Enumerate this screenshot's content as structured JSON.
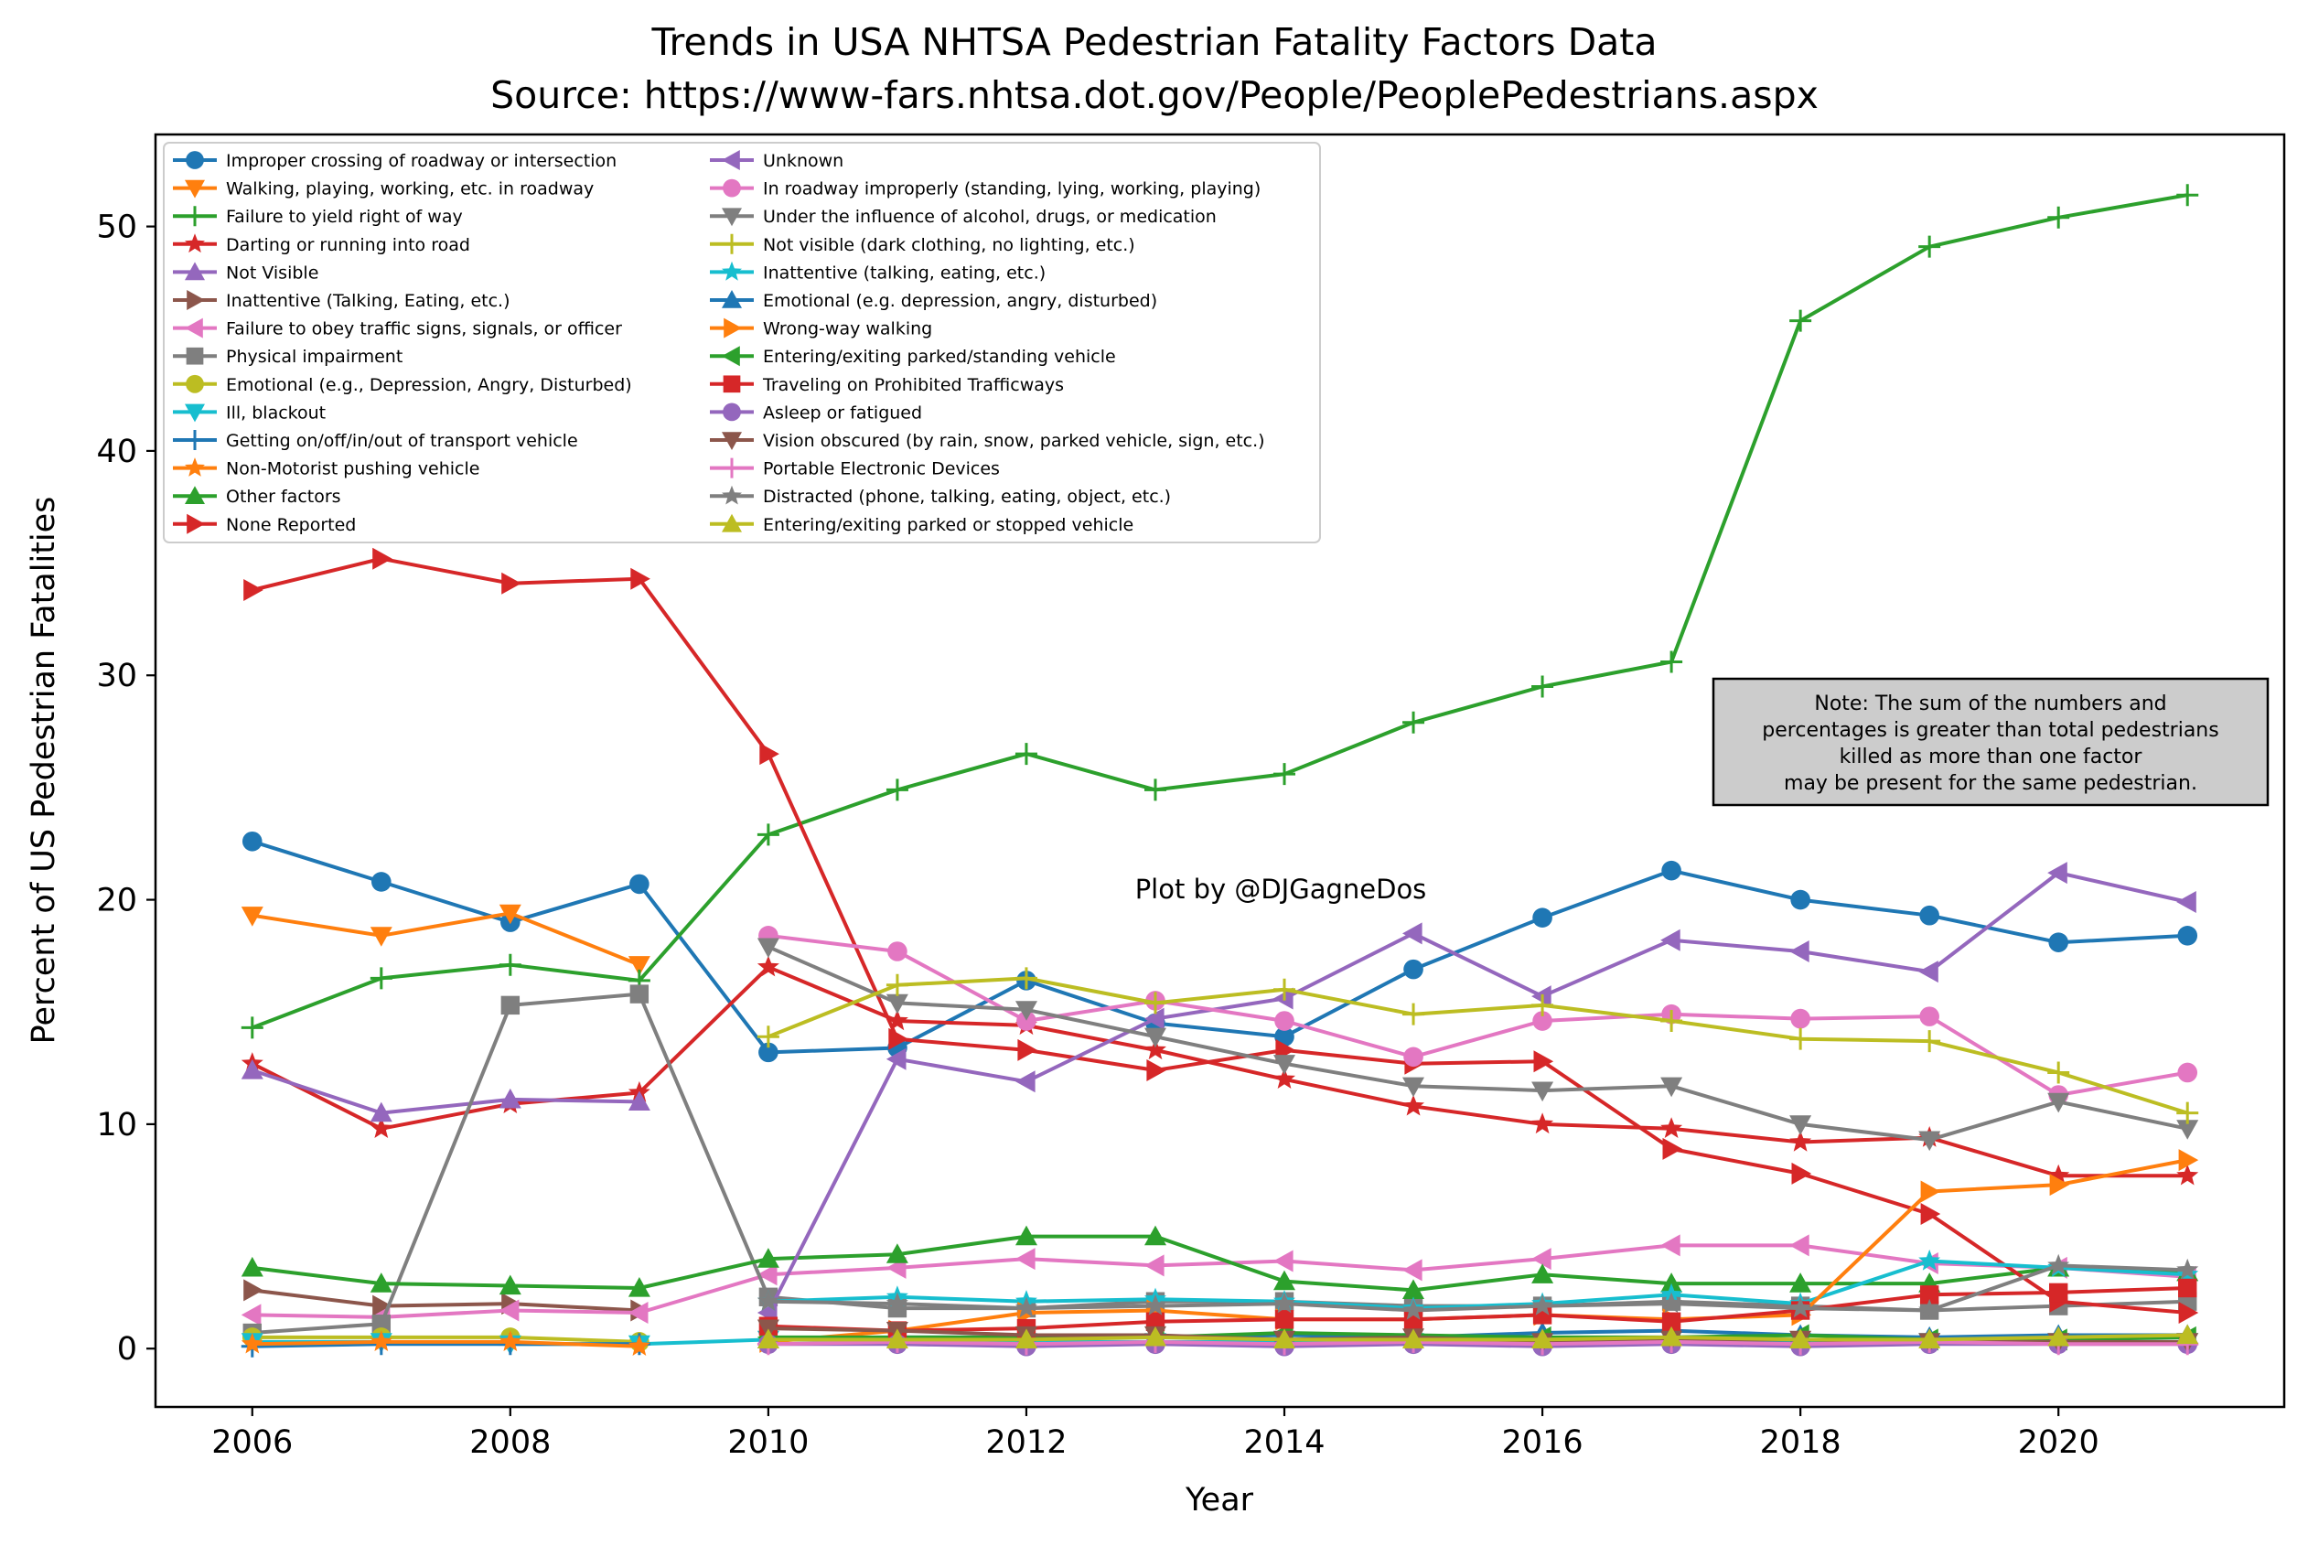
{
  "chart_data": {
    "type": "line",
    "title": "Trends in USA NHTSA Pedestrian Fatality Factors Data",
    "subtitle": "Source: https://www-fars.nhtsa.dot.gov/People/PeoplePedestrians.aspx",
    "xlabel": "Year",
    "ylabel": "Percent of US Pedestrian Fatalities",
    "xlim": [
      2005.25,
      2021.75
    ],
    "ylim": [
      -2.6,
      54.1
    ],
    "xticks": [
      2006,
      2008,
      2010,
      2012,
      2014,
      2016,
      2018,
      2020
    ],
    "yticks": [
      0,
      10,
      20,
      30,
      40,
      50
    ],
    "legend_position": "upper-left",
    "annotation": "Plot by @DJGagneDos",
    "note": [
      "Note: The sum of the numbers and",
      "percentages is greater than total pedestrians",
      "killed as more than one factor",
      "may be present for the same pedestrian."
    ],
    "x": [
      2006,
      2007,
      2008,
      2009,
      2010,
      2011,
      2012,
      2013,
      2014,
      2015,
      2016,
      2017,
      2018,
      2019,
      2020,
      2021
    ],
    "series": [
      {
        "name": "Improper crossing of roadway or intersection",
        "color": "#1f77b4",
        "marker": "circle",
        "x": [
          2006,
          2007,
          2008,
          2009,
          2010,
          2011,
          2012,
          2013,
          2014,
          2015,
          2016,
          2017,
          2018,
          2019,
          2020,
          2021
        ],
        "values": [
          22.6,
          20.8,
          19.0,
          20.7,
          13.2,
          13.4,
          16.4,
          14.5,
          13.9,
          16.9,
          19.2,
          21.3,
          20.0,
          19.3,
          18.1,
          18.4
        ]
      },
      {
        "name": "Walking, playing, working, etc. in roadway",
        "color": "#ff7f0e",
        "marker": "triangle-down",
        "x": [
          2006,
          2007,
          2008,
          2009
        ],
        "values": [
          19.3,
          18.4,
          19.4,
          17.1
        ]
      },
      {
        "name": "Failure to yield right of way",
        "color": "#2ca02c",
        "marker": "plus",
        "x": [
          2006,
          2007,
          2008,
          2009,
          2010,
          2011,
          2012,
          2013,
          2014,
          2015,
          2016,
          2017,
          2018,
          2019,
          2020,
          2021
        ],
        "values": [
          14.3,
          16.5,
          17.1,
          16.4,
          22.9,
          24.9,
          26.5,
          24.9,
          25.6,
          27.9,
          29.5,
          30.6,
          45.8,
          49.1,
          50.4,
          51.4
        ]
      },
      {
        "name": "Darting or running into road",
        "color": "#d62728",
        "marker": "star",
        "x": [
          2006,
          2007,
          2008,
          2009,
          2010,
          2011,
          2012,
          2013,
          2014,
          2015,
          2016,
          2017,
          2018,
          2019,
          2020,
          2021
        ],
        "values": [
          12.7,
          9.8,
          10.9,
          11.4,
          17.0,
          14.6,
          14.4,
          13.3,
          12.0,
          10.8,
          10.0,
          9.8,
          9.2,
          9.4,
          7.7,
          7.7
        ]
      },
      {
        "name": "Not Visible",
        "color": "#9467bd",
        "marker": "triangle-up",
        "x": [
          2006,
          2007,
          2008,
          2009
        ],
        "values": [
          12.4,
          10.5,
          11.1,
          11.0
        ]
      },
      {
        "name": "Inattentive (Talking, Eating, etc.)",
        "color": "#8c564b",
        "marker": "triangle-right",
        "x": [
          2006,
          2007,
          2008,
          2009
        ],
        "values": [
          2.6,
          1.9,
          2.0,
          1.7
        ]
      },
      {
        "name": "Failure to obey traffic signs, signals, or officer",
        "color": "#e377c2",
        "marker": "triangle-left",
        "x": [
          2006,
          2007,
          2008,
          2009,
          2010,
          2011,
          2012,
          2013,
          2014,
          2015,
          2016,
          2017,
          2018,
          2019,
          2020,
          2021
        ],
        "values": [
          1.5,
          1.4,
          1.7,
          1.6,
          3.3,
          3.6,
          4.0,
          3.7,
          3.9,
          3.5,
          4.0,
          4.6,
          4.6,
          3.8,
          3.6,
          3.2
        ]
      },
      {
        "name": "Physical impairment",
        "color": "#7f7f7f",
        "marker": "square",
        "x": [
          2006,
          2007,
          2008,
          2009,
          2010,
          2011,
          2012,
          2013,
          2014,
          2015,
          2016,
          2017,
          2018,
          2019,
          2020,
          2021
        ],
        "values": [
          0.7,
          1.1,
          15.3,
          15.8,
          2.3,
          1.8,
          1.8,
          2.1,
          2.1,
          1.9,
          1.9,
          2.1,
          1.9,
          1.7,
          1.9,
          2.1
        ]
      },
      {
        "name": "Emotional (e.g., Depression, Angry, Disturbed)",
        "color": "#bcbd22",
        "marker": "circle",
        "x": [
          2006,
          2007,
          2008,
          2009
        ],
        "values": [
          0.5,
          0.5,
          0.5,
          0.3
        ]
      },
      {
        "name": "Ill, blackout",
        "color": "#17becf",
        "marker": "triangle-down",
        "x": [
          2006,
          2007,
          2008,
          2009,
          2010,
          2011,
          2012,
          2013,
          2014,
          2015,
          2016,
          2017,
          2018,
          2019,
          2020,
          2021
        ],
        "values": [
          0.3,
          0.3,
          0.2,
          0.2,
          0.4,
          0.4,
          0.3,
          0.3,
          0.3,
          0.3,
          0.3,
          0.4,
          0.3,
          0.3,
          0.3,
          0.3
        ]
      },
      {
        "name": "Getting on/off/in/out of transport vehicle",
        "color": "#1f77b4",
        "marker": "plus",
        "x": [
          2006,
          2007,
          2008,
          2009
        ],
        "values": [
          0.1,
          0.2,
          0.2,
          0.2
        ]
      },
      {
        "name": "Non-Motorist pushing  vehicle",
        "color": "#ff7f0e",
        "marker": "star",
        "x": [
          2006,
          2007,
          2008,
          2009
        ],
        "values": [
          0.2,
          0.3,
          0.3,
          0.1
        ]
      },
      {
        "name": "Other factors",
        "color": "#2ca02c",
        "marker": "triangle-up",
        "x": [
          2006,
          2007,
          2008,
          2009,
          2010,
          2011,
          2012,
          2013,
          2014,
          2015,
          2016,
          2017,
          2018,
          2019,
          2020,
          2021
        ],
        "values": [
          3.6,
          2.9,
          2.8,
          2.7,
          4.0,
          4.2,
          5.0,
          5.0,
          3.0,
          2.6,
          3.3,
          2.9,
          2.9,
          2.9,
          3.6,
          3.4
        ]
      },
      {
        "name": "None Reported",
        "color": "#d62728",
        "marker": "triangle-right",
        "x": [
          2006,
          2007,
          2008,
          2009,
          2010,
          2011,
          2012,
          2013,
          2014,
          2015,
          2016,
          2017,
          2018,
          2019,
          2020,
          2021
        ],
        "values": [
          33.8,
          35.2,
          34.1,
          34.3,
          26.5,
          13.8,
          13.3,
          12.4,
          13.3,
          12.7,
          12.8,
          8.9,
          7.8,
          6.0,
          2.1,
          1.6
        ]
      },
      {
        "name": "Unknown",
        "color": "#9467bd",
        "marker": "triangle-left",
        "x": [
          2010,
          2011,
          2012,
          2013,
          2014,
          2015,
          2016,
          2017,
          2018,
          2019,
          2020,
          2021
        ],
        "values": [
          1.6,
          12.9,
          11.9,
          14.7,
          15.6,
          18.5,
          15.7,
          18.2,
          17.7,
          16.8,
          21.2,
          19.9
        ]
      },
      {
        "name": "In roadway improperly (standing, lying, working, playing)",
        "color": "#e377c2",
        "marker": "circle",
        "x": [
          2010,
          2011,
          2012,
          2013,
          2014,
          2015,
          2016,
          2017,
          2018,
          2019,
          2020,
          2021
        ],
        "values": [
          18.4,
          17.7,
          14.6,
          15.5,
          14.6,
          13.0,
          14.6,
          14.9,
          14.7,
          14.8,
          11.3,
          12.3
        ]
      },
      {
        "name": "Under the influence of alcohol, drugs, or medication",
        "color": "#7f7f7f",
        "marker": "triangle-down",
        "x": [
          2010,
          2011,
          2012,
          2013,
          2014,
          2015,
          2016,
          2017,
          2018,
          2019,
          2020,
          2021
        ],
        "values": [
          17.9,
          15.4,
          15.1,
          13.9,
          12.7,
          11.7,
          11.5,
          11.7,
          10.0,
          9.3,
          11.0,
          9.8
        ]
      },
      {
        "name": "Not visible (dark clothing, no lighting, etc.)",
        "color": "#bcbd22",
        "marker": "plus",
        "x": [
          2010,
          2011,
          2012,
          2013,
          2014,
          2015,
          2016,
          2017,
          2018,
          2019,
          2020,
          2021
        ],
        "values": [
          13.9,
          16.2,
          16.5,
          15.4,
          16.0,
          14.9,
          15.3,
          14.6,
          13.8,
          13.7,
          12.3,
          10.5
        ]
      },
      {
        "name": "Inattentive (talking, eating, etc.)",
        "color": "#17becf",
        "marker": "star",
        "x": [
          2010,
          2011,
          2012,
          2013,
          2014,
          2015,
          2016,
          2017,
          2018,
          2019,
          2020,
          2021
        ],
        "values": [
          2.1,
          2.3,
          2.1,
          2.2,
          2.1,
          1.8,
          2.0,
          2.4,
          2.0,
          3.9,
          3.6,
          3.3
        ]
      },
      {
        "name": "Emotional (e.g. depression, angry, disturbed)",
        "color": "#1f77b4",
        "marker": "triangle-up",
        "x": [
          2010,
          2011,
          2012,
          2013,
          2014,
          2015,
          2016,
          2017,
          2018,
          2019,
          2020,
          2021
        ],
        "values": [
          0.4,
          0.5,
          0.5,
          0.5,
          0.6,
          0.5,
          0.7,
          0.8,
          0.6,
          0.5,
          0.6,
          0.6
        ]
      },
      {
        "name": "Wrong-way walking",
        "color": "#ff7f0e",
        "marker": "triangle-right",
        "x": [
          2010,
          2011,
          2012,
          2013,
          2014,
          2015,
          2016,
          2017,
          2018,
          2019,
          2020,
          2021
        ],
        "values": [
          0.3,
          0.8,
          1.6,
          1.7,
          1.3,
          1.3,
          1.5,
          1.3,
          1.5,
          7.0,
          7.3,
          8.4
        ]
      },
      {
        "name": "Entering/exiting parked/standing vehicle",
        "color": "#2ca02c",
        "marker": "triangle-left",
        "x": [
          2010,
          2011,
          2012,
          2013,
          2014,
          2015,
          2016,
          2017,
          2018,
          2019,
          2020,
          2021
        ],
        "values": [
          0.5,
          0.5,
          0.5,
          0.5,
          0.7,
          0.6,
          0.5,
          0.5,
          0.6,
          0.4,
          0.4,
          0.5
        ]
      },
      {
        "name": "Traveling on Prohibited Trafficways",
        "color": "#d62728",
        "marker": "square",
        "x": [
          2010,
          2011,
          2012,
          2013,
          2014,
          2015,
          2016,
          2017,
          2018,
          2019,
          2020,
          2021
        ],
        "values": [
          1.0,
          0.8,
          0.9,
          1.2,
          1.3,
          1.3,
          1.5,
          1.2,
          1.7,
          2.4,
          2.5,
          2.7
        ]
      },
      {
        "name": "Asleep or fatigued",
        "color": "#9467bd",
        "marker": "circle",
        "x": [
          2010,
          2011,
          2012,
          2013,
          2014,
          2015,
          2016,
          2017,
          2018,
          2019,
          2020,
          2021
        ],
        "values": [
          0.2,
          0.2,
          0.1,
          0.2,
          0.1,
          0.2,
          0.1,
          0.2,
          0.1,
          0.2,
          0.2,
          0.2
        ]
      },
      {
        "name": "Vision obscured (by rain, snow, parked vehicle, sign, etc.)",
        "color": "#8c564b",
        "marker": "triangle-down",
        "x": [
          2010,
          2011,
          2012,
          2013,
          2014,
          2015,
          2016,
          2017,
          2018,
          2019,
          2020,
          2021
        ],
        "values": [
          0.9,
          0.8,
          0.6,
          0.6,
          0.4,
          0.5,
          0.3,
          0.4,
          0.4,
          0.3,
          0.3,
          0.3
        ]
      },
      {
        "name": "Portable Electronic Devices",
        "color": "#e377c2",
        "marker": "plus",
        "x": [
          2010,
          2011,
          2012,
          2013,
          2014,
          2015,
          2016,
          2017,
          2018,
          2019,
          2020,
          2021
        ],
        "values": [
          0.2,
          0.3,
          0.2,
          0.3,
          0.2,
          0.3,
          0.2,
          0.3,
          0.2,
          0.3,
          0.2,
          0.2
        ]
      },
      {
        "name": "Distracted (phone, talking, eating, object, etc.)",
        "color": "#7f7f7f",
        "marker": "star",
        "x": [
          2010,
          2011,
          2012,
          2013,
          2014,
          2015,
          2016,
          2017,
          2018,
          2019,
          2020,
          2021
        ],
        "values": [
          2.1,
          2.0,
          1.8,
          1.9,
          2.0,
          1.7,
          1.9,
          2.0,
          1.8,
          1.7,
          3.7,
          3.5
        ]
      },
      {
        "name": "Entering/exiting parked or stopped vehicle",
        "color": "#bcbd22",
        "marker": "triangle-up",
        "x": [
          2010,
          2011,
          2012,
          2013,
          2014,
          2015,
          2016,
          2017,
          2018,
          2019,
          2020,
          2021
        ],
        "values": [
          0.4,
          0.4,
          0.4,
          0.5,
          0.4,
          0.4,
          0.4,
          0.5,
          0.4,
          0.4,
          0.5,
          0.6
        ]
      }
    ]
  }
}
